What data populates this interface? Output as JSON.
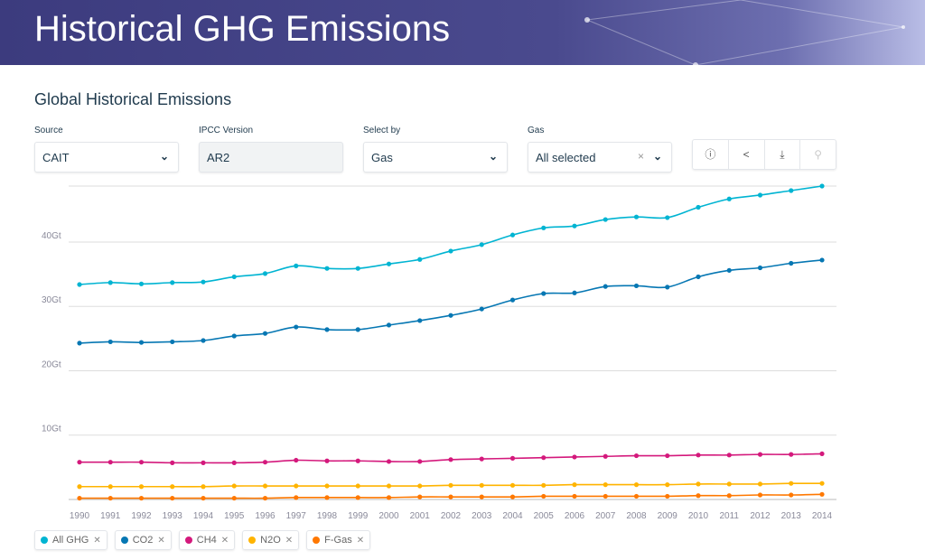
{
  "header": {
    "title": "Historical GHG Emissions"
  },
  "section_title": "Global Historical Emissions",
  "filters": {
    "source": {
      "label": "Source",
      "value": "CAIT"
    },
    "ipcc": {
      "label": "IPCC Version",
      "value": "AR2"
    },
    "select_by": {
      "label": "Select by",
      "value": "Gas"
    },
    "gas": {
      "label": "Gas",
      "value": "All selected"
    }
  },
  "toolbar": {
    "icons": [
      "info-icon",
      "share-icon",
      "download-icon",
      "add-user-icon"
    ]
  },
  "chart_data": {
    "type": "line",
    "x": [
      1990,
      1991,
      1992,
      1993,
      1994,
      1995,
      1996,
      1997,
      1998,
      1999,
      2000,
      2001,
      2002,
      2003,
      2004,
      2005,
      2006,
      2007,
      2008,
      2009,
      2010,
      2011,
      2012,
      2013,
      2014
    ],
    "y_ticks": [
      "10Gt",
      "20Gt",
      "30Gt",
      "40Gt"
    ],
    "ylim": [
      0,
      48.7
    ],
    "grid": true,
    "legend_position": "bottom-left",
    "series": [
      {
        "name": "All GHG",
        "color": "#00b4d2",
        "values": [
          33.4,
          33.7,
          33.5,
          33.7,
          33.8,
          34.6,
          35.1,
          36.3,
          35.9,
          35.9,
          36.6,
          37.3,
          38.6,
          39.6,
          41.1,
          42.2,
          42.5,
          43.5,
          43.9,
          43.8,
          45.4,
          46.7,
          47.3,
          48.0,
          48.7
        ]
      },
      {
        "name": "CO2",
        "color": "#0677b3",
        "values": [
          24.3,
          24.5,
          24.4,
          24.5,
          24.7,
          25.4,
          25.8,
          26.8,
          26.4,
          26.4,
          27.1,
          27.8,
          28.6,
          29.6,
          31.0,
          32.0,
          32.1,
          33.1,
          33.2,
          33.0,
          34.6,
          35.6,
          36.0,
          36.7,
          37.2
        ]
      },
      {
        "name": "CH4",
        "color": "#d4197c",
        "values": [
          5.8,
          5.8,
          5.8,
          5.7,
          5.7,
          5.7,
          5.8,
          6.1,
          6.0,
          6.0,
          5.9,
          5.9,
          6.2,
          6.3,
          6.4,
          6.5,
          6.6,
          6.7,
          6.8,
          6.8,
          6.9,
          6.9,
          7.0,
          7.0,
          7.1
        ]
      },
      {
        "name": "N2O",
        "color": "#ffb400",
        "values": [
          2.0,
          2.0,
          2.0,
          2.0,
          2.0,
          2.1,
          2.1,
          2.1,
          2.1,
          2.1,
          2.1,
          2.1,
          2.2,
          2.2,
          2.2,
          2.2,
          2.3,
          2.3,
          2.3,
          2.3,
          2.4,
          2.4,
          2.4,
          2.5,
          2.5
        ]
      },
      {
        "name": "F-Gas",
        "color": "#ff7800",
        "values": [
          0.2,
          0.2,
          0.2,
          0.2,
          0.2,
          0.2,
          0.2,
          0.3,
          0.3,
          0.3,
          0.3,
          0.4,
          0.4,
          0.4,
          0.4,
          0.5,
          0.5,
          0.5,
          0.5,
          0.5,
          0.6,
          0.6,
          0.7,
          0.7,
          0.8
        ]
      }
    ]
  }
}
